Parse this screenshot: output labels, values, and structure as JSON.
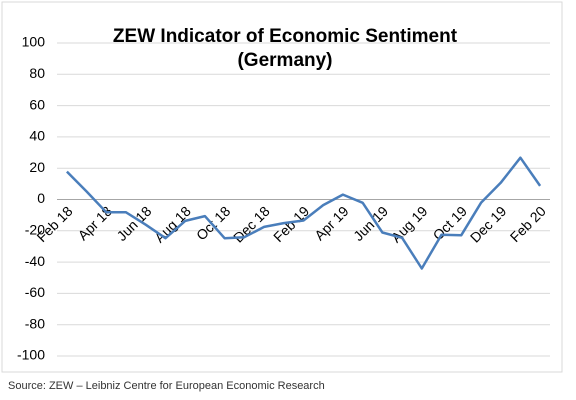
{
  "chart_data": {
    "type": "line",
    "title": [
      "ZEW Indicator of Economic Sentiment",
      "(Germany)"
    ],
    "source": "Source: ZEW – Leibniz Centre for European Economic Research",
    "categories": [
      "Feb 18",
      null,
      "Apr 18",
      null,
      "Jun 18",
      null,
      "Aug 18",
      null,
      "Oct 18",
      null,
      "Dec 18",
      null,
      "Feb 19",
      null,
      "Apr 19",
      null,
      "Jun 19",
      null,
      "Aug 19",
      null,
      "Oct 19",
      null,
      "Dec 19",
      null,
      "Feb 20"
    ],
    "values": [
      17.8,
      5.1,
      -8.2,
      -8.2,
      -16.1,
      -24.7,
      -13.7,
      -10.6,
      -24.7,
      -24.1,
      -17.5,
      -15.1,
      -13.4,
      -3.6,
      3.1,
      -2.1,
      -21.1,
      -24.5,
      -44.1,
      -22.5,
      -22.8,
      -2.1,
      10.7,
      26.7,
      8.7
    ],
    "color": "#4a7ebb",
    "ylim": [
      -100,
      100
    ],
    "yticks": [
      -100,
      -80,
      -60,
      -40,
      -20,
      0,
      20,
      40,
      60,
      80,
      100
    ],
    "grid": true
  }
}
